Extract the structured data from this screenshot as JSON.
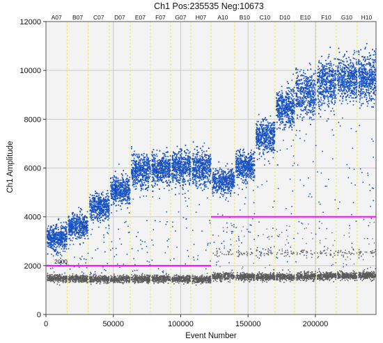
{
  "chart_data": {
    "type": "scatter",
    "title": "Ch1 Pos:235535 Neg:10673",
    "xlabel": "Event Number",
    "ylabel": "Ch1 Amplitude",
    "xlim": [
      0,
      245000
    ],
    "ylim": [
      0,
      12000
    ],
    "xticks": [
      0,
      50000,
      100000,
      150000,
      200000
    ],
    "yticks": [
      0,
      2000,
      4000,
      6000,
      8000,
      10000,
      12000
    ],
    "wells": [
      {
        "name": "A07",
        "start": 0,
        "end": 15700,
        "pos_center": 3200,
        "pos_spread": 560,
        "neg_center": 1500
      },
      {
        "name": "B07",
        "start": 15700,
        "end": 31400,
        "pos_center": 3650,
        "pos_spread": 560,
        "neg_center": 1500
      },
      {
        "name": "C07",
        "start": 31400,
        "end": 47000,
        "pos_center": 4450,
        "pos_spread": 600,
        "neg_center": 1480
      },
      {
        "name": "D07",
        "start": 47000,
        "end": 62500,
        "pos_center": 5100,
        "pos_spread": 640,
        "neg_center": 1480
      },
      {
        "name": "E07",
        "start": 62500,
        "end": 77500,
        "pos_center": 5900,
        "pos_spread": 760,
        "neg_center": 1480
      },
      {
        "name": "F07",
        "start": 77500,
        "end": 92500,
        "pos_center": 6000,
        "pos_spread": 720,
        "neg_center": 1480
      },
      {
        "name": "G07",
        "start": 92500,
        "end": 107500,
        "pos_center": 6050,
        "pos_spread": 720,
        "neg_center": 1470
      },
      {
        "name": "H07",
        "start": 107500,
        "end": 122500,
        "pos_center": 6050,
        "pos_spread": 760,
        "neg_center": 1460
      },
      {
        "name": "A10",
        "start": 122500,
        "end": 140000,
        "pos_center": 5500,
        "pos_spread": 560,
        "neg_center": 1580
      },
      {
        "name": "B10",
        "start": 140000,
        "end": 155000,
        "pos_center": 6100,
        "pos_spread": 660,
        "neg_center": 1570
      },
      {
        "name": "C10",
        "start": 155000,
        "end": 170000,
        "pos_center": 7300,
        "pos_spread": 720,
        "neg_center": 1560
      },
      {
        "name": "D10",
        "start": 170000,
        "end": 184500,
        "pos_center": 8500,
        "pos_spread": 880,
        "neg_center": 1560
      },
      {
        "name": "E10",
        "start": 184500,
        "end": 200500,
        "pos_center": 9100,
        "pos_spread": 1000,
        "neg_center": 1580
      },
      {
        "name": "F10",
        "start": 200500,
        "end": 215500,
        "pos_center": 9500,
        "pos_spread": 1050,
        "neg_center": 1600
      },
      {
        "name": "G10",
        "start": 215500,
        "end": 231000,
        "pos_center": 9700,
        "pos_spread": 1000,
        "neg_center": 1600
      },
      {
        "name": "H10",
        "start": 231000,
        "end": 245000,
        "pos_center": 9700,
        "pos_spread": 1050,
        "neg_center": 1610
      }
    ],
    "thresholds": [
      {
        "x_start": 0,
        "x_end": 122500,
        "y": 2000,
        "label": "2000"
      },
      {
        "x_start": 122500,
        "x_end": 245000,
        "y": 4000,
        "label": ""
      }
    ],
    "colors": {
      "positive": "#1a55c8",
      "negative": "#5a5a5a",
      "threshold": "#ff00ff",
      "well_divider": "#eaea66",
      "plot_background": "#f3f3f3",
      "major_grid": "#c9c9c9"
    },
    "grid": true,
    "legend": "none"
  }
}
